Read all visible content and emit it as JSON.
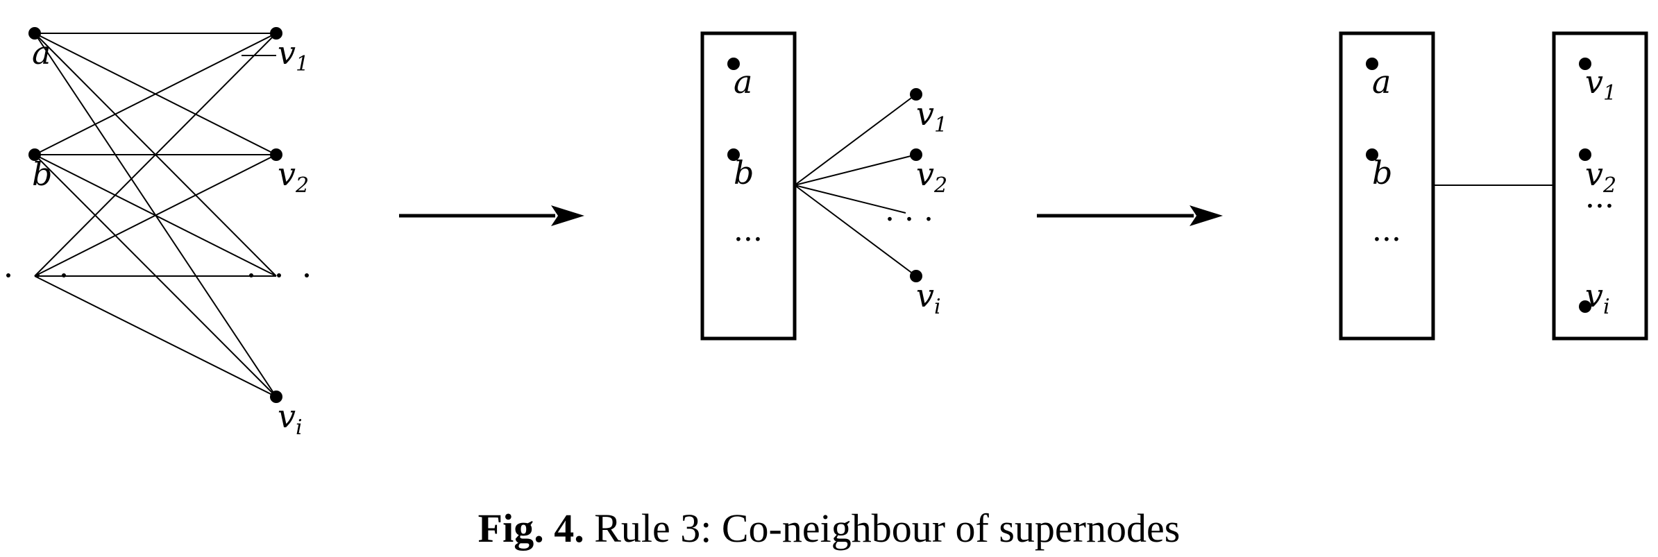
{
  "panel1": {
    "nodes": {
      "a": "a",
      "b": "b",
      "v1": "v",
      "v1_sub": "1",
      "v2": "v",
      "v2_sub": "2",
      "vi": "v",
      "vi_sub": "i"
    }
  },
  "panel2": {
    "supernode": {
      "a": "a",
      "b": "b",
      "ellipsis": "···"
    },
    "neighbours": {
      "v1": "v",
      "v1_sub": "1",
      "v2": "v",
      "v2_sub": "2",
      "ellipsis": ". . .",
      "vi": "v",
      "vi_sub": "i"
    }
  },
  "panel3": {
    "left_supernode": {
      "a": "a",
      "b": "b",
      "ellipsis": "···"
    },
    "right_supernode": {
      "v1": "v",
      "v1_sub": "1",
      "v2": "v",
      "v2_sub": "2",
      "ellipsis": "···",
      "vi": "v",
      "vi_sub": "i"
    }
  },
  "caption": {
    "label": "Fig. 4.",
    "text": "Rule 3: Co-neighbour of supernodes"
  }
}
